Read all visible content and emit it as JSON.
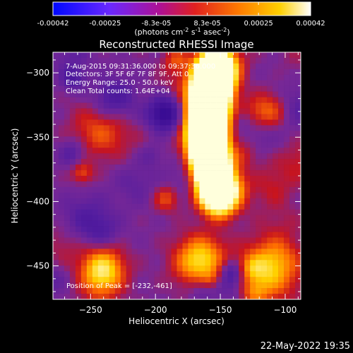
{
  "colorbar": {
    "tick_labels": [
      "-0.00042",
      "-0.00025",
      "-8.3e-05",
      "8.3e-05",
      "0.00025",
      "0.00042"
    ],
    "tick_values": [
      -0.00042,
      -0.00025,
      -8.3e-05,
      8.3e-05,
      0.00025,
      0.00042
    ],
    "range": [
      -0.00042,
      0.00042
    ],
    "units_main": "(photons cm",
    "units_sup1": "-2",
    "units_mid": " s",
    "units_sup2": "-1",
    "units_end": " asec",
    "units_sup3": "-2",
    "units_close": ")"
  },
  "chart_data": {
    "type": "heatmap",
    "title": "Reconstructed RHESSI Image",
    "xlabel": "Heliocentric X (arcsec)",
    "ylabel": "Heliocentric Y (arcsec)",
    "xlim": [
      -279,
      -88
    ],
    "ylim": [
      -476,
      -284
    ],
    "x_ticks": [
      -250,
      -200,
      -150,
      -100
    ],
    "y_ticks": [
      -300,
      -350,
      -400,
      -450
    ],
    "annotations": [
      "7-Aug-2015 09:31:36.000 to 09:37:36.000",
      "Detectors: 3F 5F 6F 7F 8F 9F, Att 0",
      "Energy Range: 25.0 - 50.0 keV",
      "Clean     Total counts: 1.64E+04"
    ],
    "peak_label": "Position of Peak = [-232,-461]",
    "peak": [
      -232,
      -461
    ]
  },
  "timestamp": "22-May-2022 19:35"
}
